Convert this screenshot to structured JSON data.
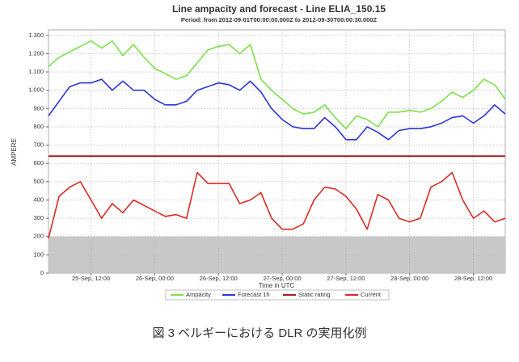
{
  "chart_data": {
    "type": "line",
    "title": "Line ampacity and forecast - Line ELIA_150.15",
    "subtitle": "Period: from 2012-09-01T00:00:00.000Z to 2012-09-30T00:00:30.000Z",
    "x_label": "Time in UTC",
    "y_label": "AMPERE",
    "caption": "図 3 ベルギーにおける DLR の実用化例",
    "x": [
      "25-Sep, 04:00",
      "25-Sep, 06:00",
      "25-Sep, 08:00",
      "25-Sep, 10:00",
      "25-Sep, 12:00",
      "25-Sep, 14:00",
      "25-Sep, 16:00",
      "25-Sep, 18:00",
      "25-Sep, 20:00",
      "25-Sep, 22:00",
      "26-Sep, 00:00",
      "26-Sep, 02:00",
      "26-Sep, 04:00",
      "26-Sep, 06:00",
      "26-Sep, 08:00",
      "26-Sep, 10:00",
      "26-Sep, 12:00",
      "26-Sep, 14:00",
      "26-Sep, 16:00",
      "26-Sep, 18:00",
      "26-Sep, 20:00",
      "26-Sep, 22:00",
      "27-Sep, 00:00",
      "27-Sep, 02:00",
      "27-Sep, 04:00",
      "27-Sep, 06:00",
      "27-Sep, 08:00",
      "27-Sep, 10:00",
      "27-Sep, 12:00",
      "27-Sep, 14:00",
      "27-Sep, 16:00",
      "27-Sep, 18:00",
      "27-Sep, 20:00",
      "27-Sep, 22:00",
      "28-Sep, 00:00",
      "28-Sep, 02:00",
      "28-Sep, 04:00",
      "28-Sep, 06:00",
      "28-Sep, 08:00",
      "28-Sep, 10:00",
      "28-Sep, 12:00",
      "28-Sep, 14:00",
      "28-Sep, 16:00",
      "28-Sep, 18:00"
    ],
    "series": [
      {
        "name": "Ampacity",
        "color": "#7be04a",
        "values": [
          1130,
          1180,
          1210,
          1240,
          1270,
          1230,
          1270,
          1190,
          1250,
          1180,
          1120,
          1090,
          1060,
          1080,
          1150,
          1220,
          1240,
          1250,
          1200,
          1250,
          1060,
          1000,
          950,
          900,
          870,
          880,
          920,
          850,
          790,
          860,
          840,
          800,
          880,
          880,
          890,
          880,
          900,
          940,
          990,
          960,
          1000,
          1060,
          1030,
          950
        ]
      },
      {
        "name": "Forecast 1h",
        "color": "#2a35d6",
        "values": [
          860,
          940,
          1020,
          1040,
          1040,
          1060,
          1000,
          1050,
          1000,
          1000,
          950,
          920,
          920,
          940,
          1000,
          1020,
          1040,
          1030,
          1000,
          1050,
          990,
          900,
          840,
          800,
          790,
          790,
          850,
          800,
          730,
          730,
          800,
          770,
          730,
          780,
          790,
          790,
          800,
          820,
          850,
          860,
          820,
          860,
          920,
          870
        ]
      },
      {
        "name": "Static rating",
        "color": "#a3201c",
        "values": [
          640,
          640,
          640,
          640,
          640,
          640,
          640,
          640,
          640,
          640,
          640,
          640,
          640,
          640,
          640,
          640,
          640,
          640,
          640,
          640,
          640,
          640,
          640,
          640,
          640,
          640,
          640,
          640,
          640,
          640,
          640,
          640,
          640,
          640,
          640,
          640,
          640,
          640,
          640,
          640,
          640,
          640,
          640,
          640
        ]
      },
      {
        "name": "Current",
        "color": "#d92a22",
        "values": [
          190,
          420,
          470,
          500,
          400,
          300,
          380,
          330,
          400,
          370,
          340,
          310,
          320,
          300,
          550,
          490,
          490,
          490,
          380,
          400,
          440,
          300,
          240,
          240,
          270,
          400,
          470,
          460,
          420,
          350,
          240,
          430,
          400,
          300,
          280,
          300,
          470,
          500,
          550,
          400,
          300,
          340,
          280,
          300
        ]
      }
    ],
    "shaded_band": [
      0,
      200
    ],
    "xlim": [
      "25-Sep, 04:00",
      "28-Sep, 18:00"
    ],
    "xticks": [
      "25-Sep, 12:00",
      "26-Sep, 00:00",
      "26-Sep, 12:00",
      "27-Sep, 00:00",
      "27-Sep, 12:00",
      "28-Sep, 00:00",
      "28-Sep, 12:00"
    ],
    "ylim": [
      0,
      1330
    ],
    "yticks": [
      0,
      100,
      200,
      300,
      400,
      500,
      600,
      700,
      800,
      900,
      {
        "value": 1000,
        "label": "1.000"
      },
      {
        "value": 1100,
        "label": "1.100"
      },
      {
        "value": 1200,
        "label": "1.200"
      },
      {
        "value": 1300,
        "label": "1.300"
      }
    ],
    "grid": true,
    "legend": "bottom"
  }
}
